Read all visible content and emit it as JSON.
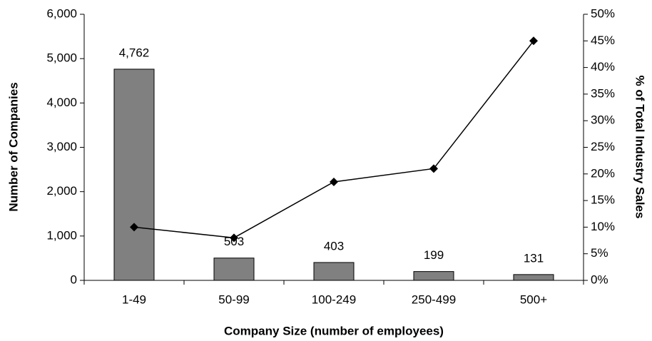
{
  "chart_data": {
    "type": "bar",
    "x_label": "Company Size (number of employees)",
    "y_label": "Number of Companies",
    "y2_label": "% of Total Industry Sales",
    "categories": [
      "1-49",
      "50-99",
      "100-249",
      "250-499",
      "500+"
    ],
    "series": [
      {
        "type": "bar",
        "color": "#808080",
        "values": [
          4762,
          503,
          403,
          199,
          131
        ],
        "value_labels": [
          "4,762",
          "503",
          "403",
          "199",
          "131"
        ]
      },
      {
        "type": "line",
        "axis": "y2",
        "color": "#000000",
        "values": [
          10,
          8,
          18.5,
          21,
          45
        ]
      }
    ],
    "ylim": [
      0,
      6000
    ],
    "yticks": [
      0,
      {
        "value": 1000,
        "label": "1,000"
      },
      {
        "value": 2000,
        "label": "2,000"
      },
      {
        "value": 3000,
        "label": "3,000"
      },
      {
        "value": 4000,
        "label": "4,000"
      },
      {
        "value": 5000,
        "label": "5,000"
      },
      {
        "value": 6000,
        "label": "6,000"
      }
    ],
    "y2lim": [
      0,
      50
    ],
    "y2ticks": [
      {
        "value": 0,
        "label": "0%"
      },
      {
        "value": 5,
        "label": "5%"
      },
      {
        "value": 10,
        "label": "10%"
      },
      {
        "value": 15,
        "label": "15%"
      },
      {
        "value": 20,
        "label": "20%"
      },
      {
        "value": 25,
        "label": "25%"
      },
      {
        "value": 30,
        "label": "30%"
      },
      {
        "value": 35,
        "label": "35%"
      },
      {
        "value": 40,
        "label": "40%"
      },
      {
        "value": 45,
        "label": "45%"
      },
      {
        "value": 50,
        "label": "50%"
      }
    ]
  }
}
